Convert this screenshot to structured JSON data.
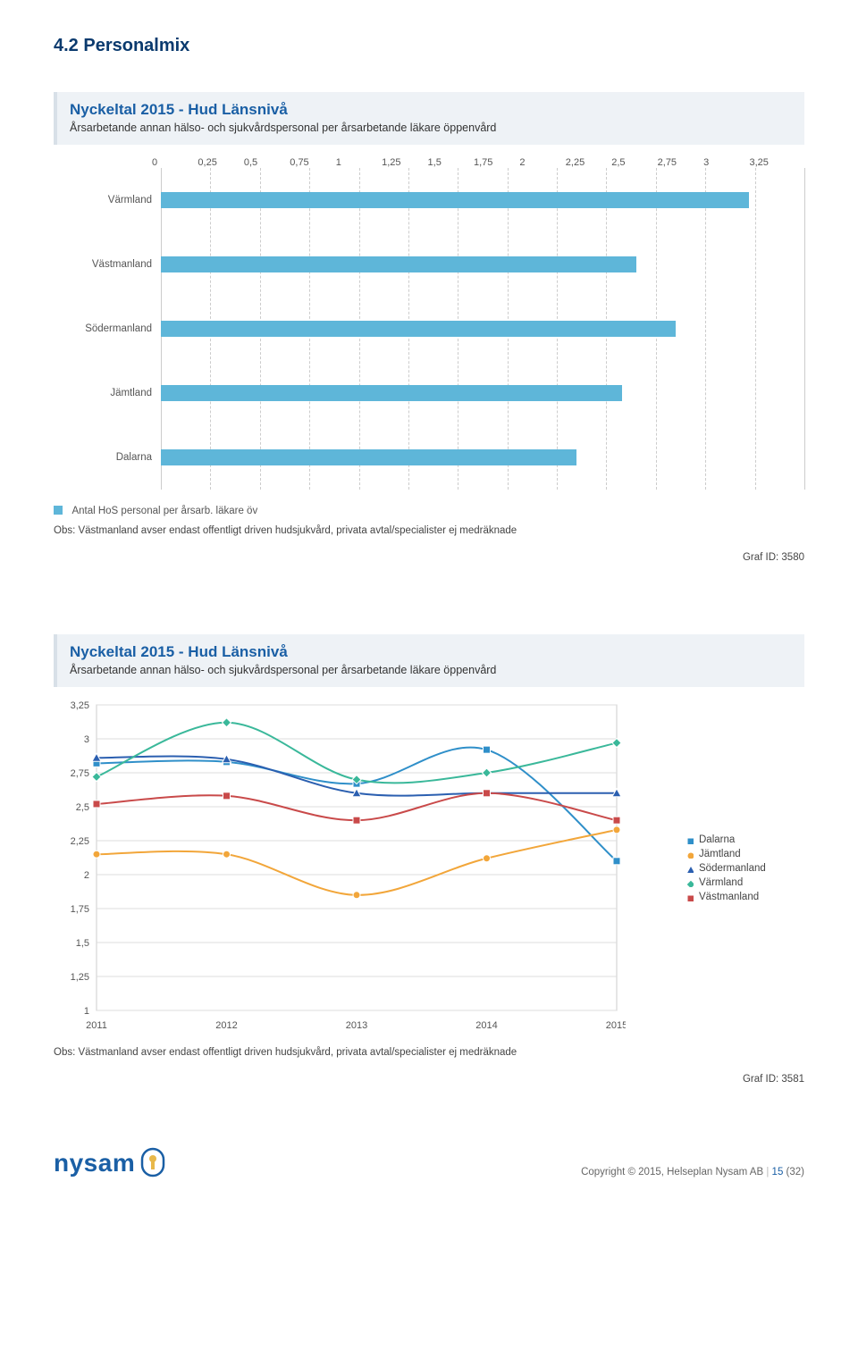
{
  "section_heading": "4.2  Personalmix",
  "chart1": {
    "title": "Nyckeltal 2015 - Hud Länsnivå",
    "subtitle": "Årsarbetande annan hälso- och sjukvårdspersonal per årsarbetande läkare öppenvård",
    "type": "bar",
    "x_ticks": [
      "0",
      "0,25",
      "0,5",
      "0,75",
      "1",
      "1,25",
      "1,5",
      "1,75",
      "2",
      "2,25",
      "2,5",
      "2,75",
      "3",
      "3,25"
    ],
    "x_max": 3.25,
    "bar_color": "#5eb6d9",
    "grid_color": "#cccccc",
    "bars": [
      {
        "label": "Värmland",
        "value": 2.97
      },
      {
        "label": "Västmanland",
        "value": 2.4
      },
      {
        "label": "Södermanland",
        "value": 2.6
      },
      {
        "label": "Jämtland",
        "value": 2.33
      },
      {
        "label": "Dalarna",
        "value": 2.1
      }
    ],
    "legend_label": "Antal HoS personal per årsarb. läkare öv",
    "note": "Obs: Västmanland avser endast offentligt driven hudsjukvård, privata avtal/specialister ej medräknade",
    "graf_id": "Graf ID: 3580"
  },
  "chart2": {
    "title": "Nyckeltal 2015 - Hud Länsnivå",
    "subtitle": "Årsarbetande annan hälso- och sjukvårdspersonal per årsarbetande läkare öppenvård",
    "type": "line",
    "x_labels": [
      "2011",
      "2012",
      "2013",
      "2014",
      "2015"
    ],
    "y_ticks": [
      "3,25",
      "3",
      "2,75",
      "2,5",
      "2,25",
      "2",
      "1,75",
      "1,5",
      "1,25",
      "1"
    ],
    "y_min": 1.0,
    "y_max": 3.25,
    "grid_color": "#dddddd",
    "legend_align_center_values": [
      "2,25",
      "2",
      "1,75"
    ],
    "series": [
      {
        "name": "Dalarna",
        "color": "#2f8fc9",
        "marker": "square",
        "values": [
          2.82,
          2.83,
          2.67,
          2.92,
          2.1
        ]
      },
      {
        "name": "Jämtland",
        "color": "#f2a63a",
        "marker": "circle",
        "values": [
          2.15,
          2.15,
          1.85,
          2.12,
          2.33
        ]
      },
      {
        "name": "Södermanland",
        "color": "#2b5fb0",
        "marker": "triangle",
        "values": [
          2.86,
          2.85,
          2.6,
          2.6,
          2.6
        ]
      },
      {
        "name": "Värmland",
        "color": "#3ab89a",
        "marker": "diamond",
        "values": [
          2.72,
          3.12,
          2.7,
          2.75,
          2.97
        ]
      },
      {
        "name": "Västmanland",
        "color": "#c94a4a",
        "marker": "square",
        "values": [
          2.52,
          2.58,
          2.4,
          2.6,
          2.4
        ]
      }
    ],
    "note": "Obs: Västmanland avser endast offentligt driven hudsjukvård, privata avtal/specialister ej medräknade",
    "graf_id": "Graf ID: 3581"
  },
  "footer": {
    "logo_text": "nysam",
    "copyright_prefix": "Copyright © 2015, Helseplan Nysam AB",
    "page_current": "15",
    "page_total": "(32)"
  }
}
